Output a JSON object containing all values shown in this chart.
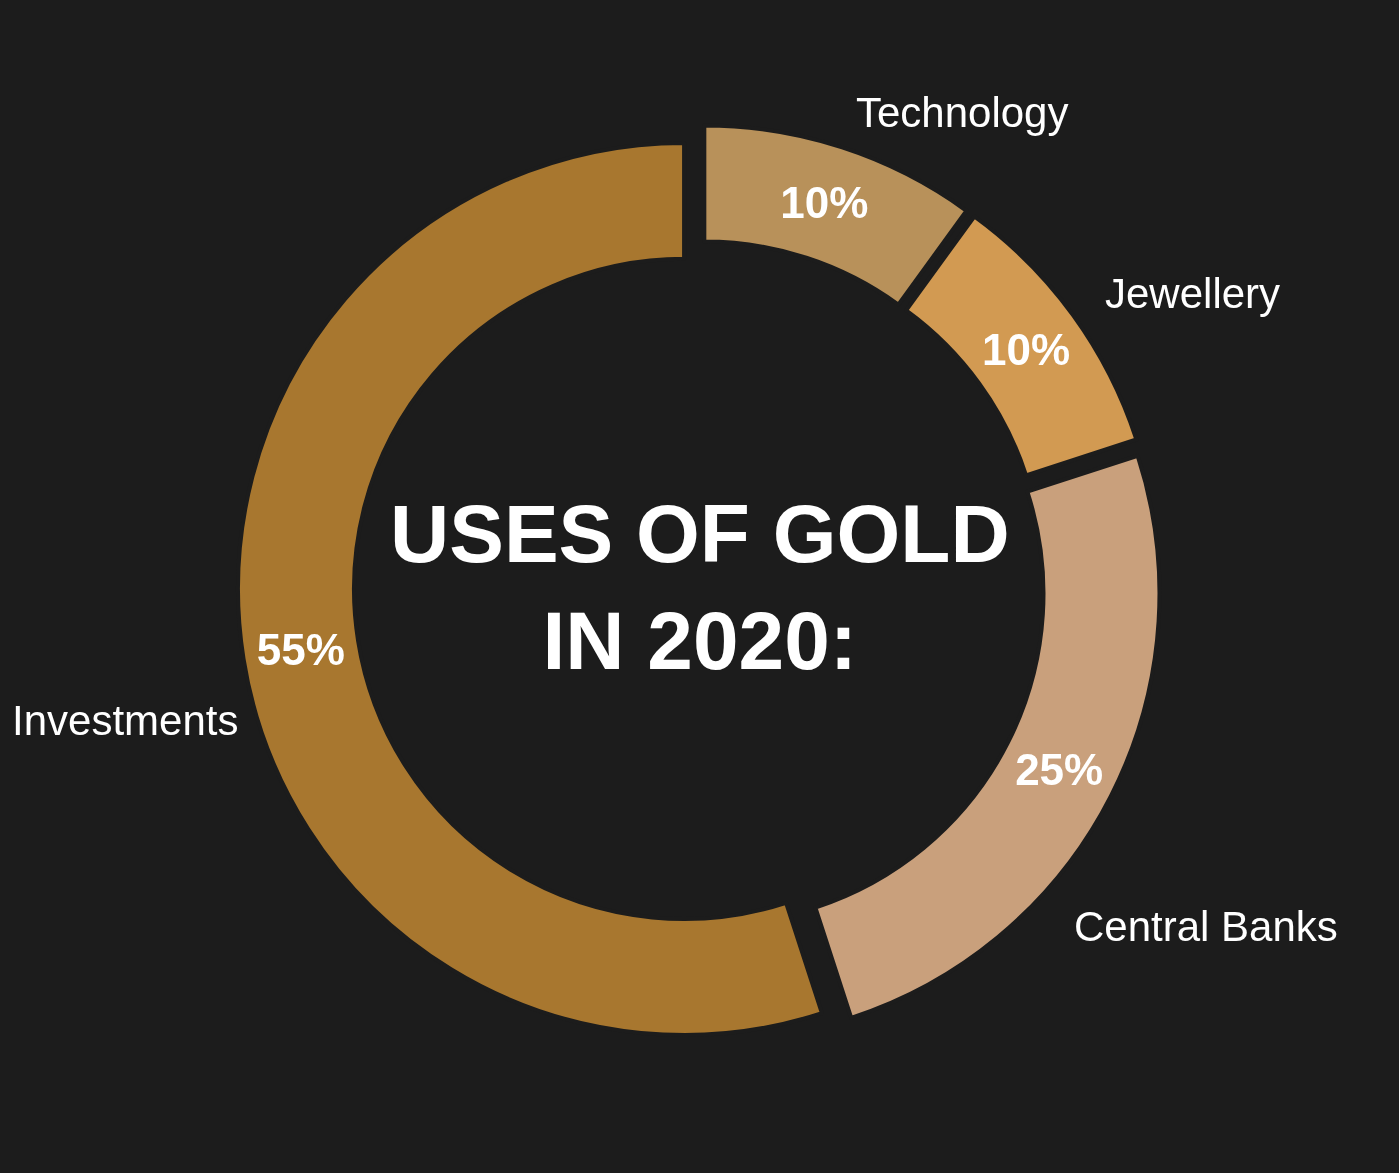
{
  "chart_data": {
    "type": "donut",
    "title": "USES OF GOLD IN 2020:",
    "categories": [
      "Technology",
      "Jewellery",
      "Central Banks",
      "Investments"
    ],
    "values": [
      10,
      10,
      25,
      55
    ],
    "value_labels": [
      "10%",
      "10%",
      "25%",
      "55%"
    ],
    "colors": [
      "#b8915a",
      "#d29a52",
      "#c9a07c",
      "#a8772f"
    ],
    "legend": false
  }
}
